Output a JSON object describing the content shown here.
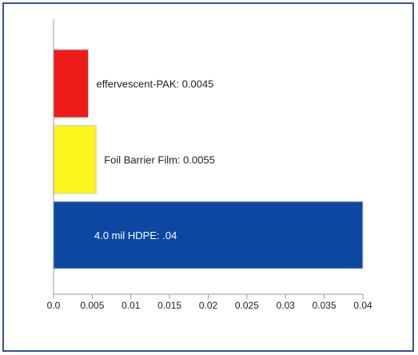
{
  "chart_data": {
    "type": "bar",
    "orientation": "horizontal",
    "title": "",
    "xlabel": "",
    "ylabel": "",
    "xlim": [
      0,
      0.04
    ],
    "grid": false,
    "legend": "none",
    "categories": [
      "effervescent-PAK",
      "Foil Barrier Film",
      "4.0 mil HDPE"
    ],
    "values": [
      0.0045,
      0.0055,
      0.04
    ],
    "bar_labels": [
      "effervescent-PAK: 0.0045",
      "Foil Barrier Film:  0.0055",
      "4.0 mil HDPE:  .04"
    ],
    "colors": [
      "#ee1b1b",
      "#fcf51d",
      "#0d47a1"
    ],
    "x_ticks": [
      0,
      0.005,
      0.01,
      0.015,
      0.02,
      0.025,
      0.03,
      0.035,
      0.04
    ],
    "x_tick_labels": [
      "0.0",
      "0.005",
      "0.01",
      "0.015",
      "0.02",
      "0.025",
      "0.03",
      "0.035",
      "0.04"
    ]
  }
}
